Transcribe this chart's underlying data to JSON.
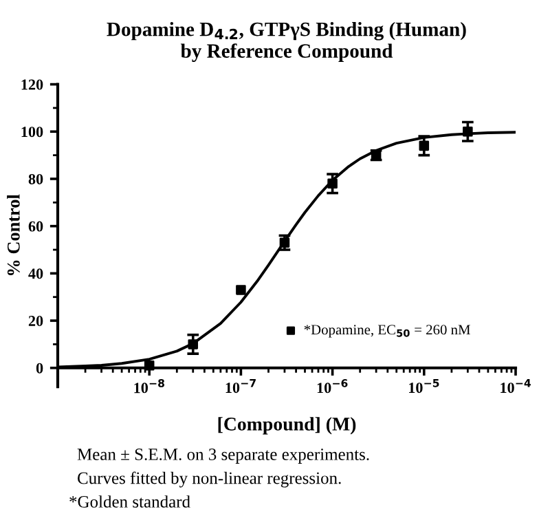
{
  "chart_data": {
    "type": "scatter",
    "title": "Dopamine D$_{4.2}$, GTPγS Binding (Human)\nby Reference Compound",
    "xlabel": "[Compound] (M)",
    "ylabel": "% Control",
    "series": [
      {
        "name": "*Dopamine, EC$_{50}$ = 260 nM",
        "color": "#000000",
        "marker": "square",
        "x": [
          1e-08,
          3e-08,
          1e-07,
          3e-07,
          1e-06,
          3e-06,
          1e-05,
          3e-05
        ],
        "values": [
          1,
          10,
          33,
          53,
          78,
          90,
          94,
          100
        ],
        "errors": [
          null,
          4,
          null,
          3,
          4,
          2,
          4,
          4
        ]
      },
      {
        "type": "line",
        "color": "#000000",
        "line_style": "solid",
        "marker": "none",
        "x": [
          1e-09,
          2e-09,
          3e-09,
          5e-09,
          1e-08,
          2e-08,
          3e-08,
          6e-08,
          1e-07,
          1.5e-07,
          2e-07,
          3e-07,
          4e-07,
          5e-07,
          7e-07,
          1e-06,
          1.5e-06,
          2e-06,
          3e-06,
          5e-06,
          1e-05,
          2e-05,
          3e-05,
          5e-05,
          0.0001
        ],
        "values": [
          0.4,
          0.8,
          1.1,
          1.9,
          3.7,
          7.1,
          10.3,
          18.8,
          27.8,
          36.6,
          43.5,
          53.6,
          60.6,
          65.8,
          72.9,
          79.4,
          85.2,
          88.5,
          92.0,
          95.1,
          97.5,
          98.7,
          99.1,
          99.5,
          99.7
        ]
      }
    ],
    "log": "x",
    "xlim": [
      1e-09,
      0.0001
    ],
    "xticks": [
      {
        "value": 1e-08,
        "label": "10$^{−8}$"
      },
      {
        "value": 1e-07,
        "label": "10$^{−7}$"
      },
      {
        "value": 1e-06,
        "label": "10$^{−6}$"
      },
      {
        "value": 1e-05,
        "label": "10$^{−5}$"
      },
      {
        "value": 0.0001,
        "label": "10$^{−4}$"
      }
    ],
    "ylim": [
      -8,
      120
    ],
    "yticks": [
      0,
      20,
      40,
      60,
      80,
      100,
      120
    ],
    "grid": false,
    "legend": "bottom right",
    "annotations": [
      "Mean ± S.E.M. on 3 separate experiments.",
      "Curves fitted by non-linear regression.",
      "*Golden standard"
    ]
  }
}
